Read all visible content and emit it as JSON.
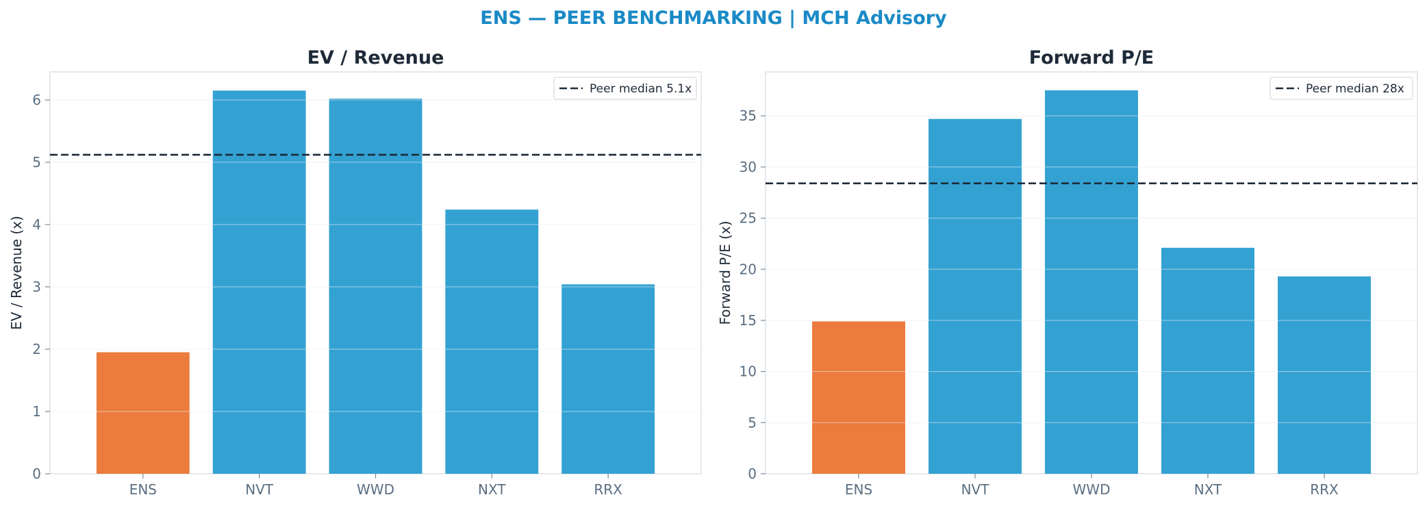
{
  "suptitle": "ENS — PEER BENCHMARKING | MCH Advisory",
  "colors": {
    "highlight": "#ec7b3e",
    "peer": "#33a2d3",
    "median_line": "#1e2a38",
    "title_accent": "#1a8ac6"
  },
  "chart_data": [
    {
      "type": "bar",
      "title": "EV / Revenue",
      "ylabel": "EV / Revenue (x)",
      "categories": [
        "ENS",
        "NVT",
        "WWD",
        "NXT",
        "RRX"
      ],
      "values": [
        1.95,
        6.15,
        6.02,
        4.24,
        3.04
      ],
      "highlight": "ENS",
      "ylim": [
        0,
        6.45
      ],
      "yticks": [
        0,
        1,
        2,
        3,
        4,
        5,
        6
      ],
      "reference_line": {
        "value": 5.12,
        "label": "Peer median 5.1x",
        "style": "dashed"
      },
      "legend": "top-right",
      "grid": "y"
    },
    {
      "type": "bar",
      "title": "Forward P/E",
      "ylabel": "Forward P/E (x)",
      "categories": [
        "ENS",
        "NVT",
        "WWD",
        "NXT",
        "RRX"
      ],
      "values": [
        14.9,
        34.7,
        37.5,
        22.1,
        19.3
      ],
      "highlight": "ENS",
      "ylim": [
        0,
        39.3
      ],
      "yticks": [
        0,
        5,
        10,
        15,
        20,
        25,
        30,
        35
      ],
      "reference_line": {
        "value": 28.4,
        "label": "Peer median 28x",
        "style": "dashed"
      },
      "legend": "top-right",
      "grid": "y"
    }
  ]
}
